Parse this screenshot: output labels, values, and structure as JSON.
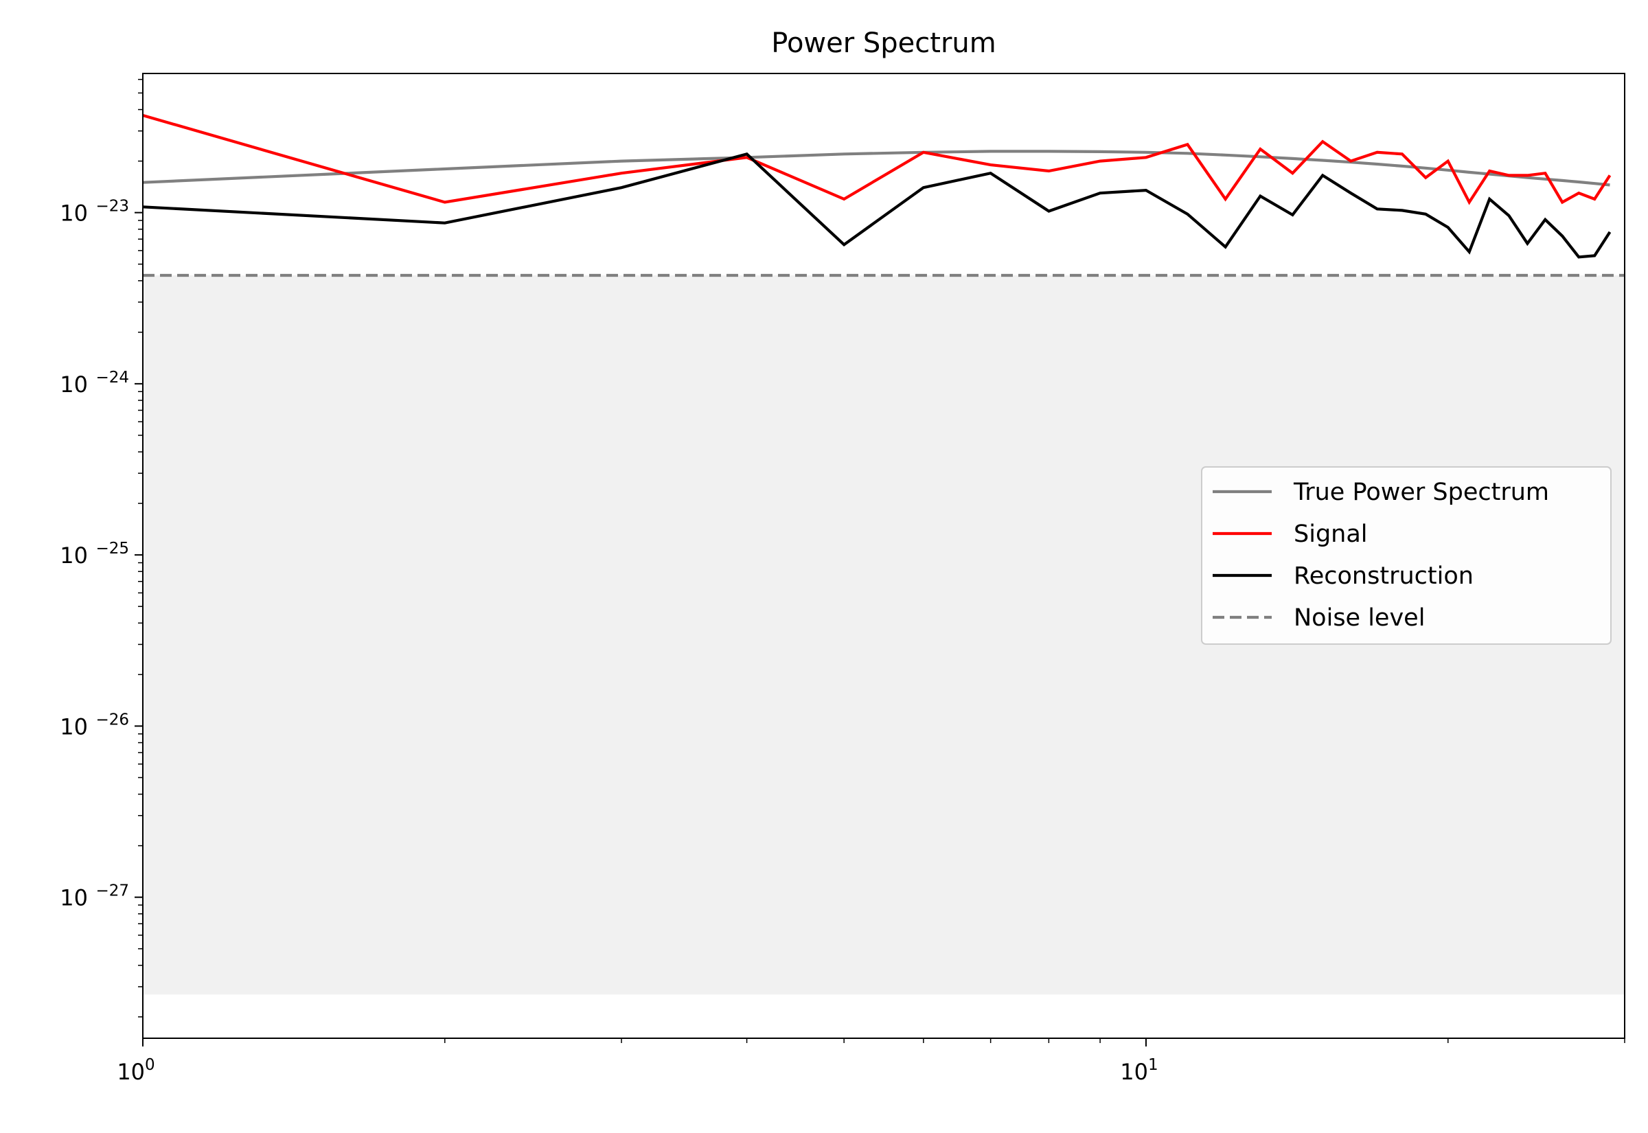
{
  "chart_data": {
    "type": "line",
    "title": "Power Spectrum",
    "xlabel": "",
    "ylabel": "",
    "xscale": "log",
    "yscale": "log",
    "xlim": [
      1,
      30
    ],
    "ylim": [
      1.5e-28,
      6.5e-23
    ],
    "x_ticks": [
      {
        "value": 1,
        "base": "10",
        "exp": "0"
      },
      {
        "value": 10,
        "base": "10",
        "exp": "1"
      }
    ],
    "y_ticks": [
      {
        "value": 1e-23,
        "base": "10",
        "exp": "−23"
      },
      {
        "value": 1e-24,
        "base": "10",
        "exp": "−24"
      },
      {
        "value": 1e-25,
        "base": "10",
        "exp": "−25"
      },
      {
        "value": 1e-26,
        "base": "10",
        "exp": "−26"
      },
      {
        "value": 1e-27,
        "base": "10",
        "exp": "−27"
      }
    ],
    "grid": false,
    "legend_position": "center-right",
    "shaded_band": {
      "x_range": [
        1,
        30
      ],
      "y_range": [
        2.7e-28,
        4.3e-24
      ],
      "color": "#f1f1f1"
    },
    "x": [
      1,
      2,
      3,
      4,
      5,
      6,
      7,
      8,
      9,
      10,
      11,
      12,
      13,
      14,
      15,
      16,
      17,
      18,
      19,
      20,
      21,
      22,
      23,
      24,
      25,
      26,
      27,
      28,
      29
    ],
    "series": [
      {
        "name": "True Power Spectrum",
        "color": "#808080",
        "dash": "solid",
        "x": [
          1,
          2,
          3,
          4,
          5,
          6,
          7,
          8,
          9,
          10,
          11,
          12,
          13,
          14,
          15,
          16,
          17,
          18,
          19,
          20,
          21,
          22,
          23,
          24,
          25,
          26,
          27,
          28,
          29
        ],
        "values": [
          1.5e-23,
          1.8e-23,
          2e-23,
          2.1e-23,
          2.2e-23,
          2.25e-23,
          2.28e-23,
          2.28e-23,
          2.27e-23,
          2.25e-23,
          2.22e-23,
          2.17e-23,
          2.12e-23,
          2.07e-23,
          2.02e-23,
          1.97e-23,
          1.92e-23,
          1.87e-23,
          1.82e-23,
          1.77e-23,
          1.72e-23,
          1.68e-23,
          1.64e-23,
          1.6e-23,
          1.57e-23,
          1.54e-23,
          1.51e-23,
          1.48e-23,
          1.45e-23
        ]
      },
      {
        "name": "Signal",
        "color": "#ff0000",
        "dash": "solid",
        "x": [
          1,
          2,
          3,
          4,
          5,
          6,
          7,
          8,
          9,
          10,
          11,
          12,
          13,
          14,
          15,
          16,
          17,
          18,
          19,
          20,
          21,
          22,
          23,
          24,
          25,
          26,
          27,
          28,
          29
        ],
        "values": [
          3.7e-23,
          1.15e-23,
          1.7e-23,
          2.1e-23,
          1.2e-23,
          2.25e-23,
          1.9e-23,
          1.75e-23,
          2e-23,
          2.1e-23,
          2.5e-23,
          1.2e-23,
          2.35e-23,
          1.7e-23,
          2.6e-23,
          2e-23,
          2.25e-23,
          2.2e-23,
          1.6e-23,
          2e-23,
          1.15e-23,
          1.75e-23,
          1.65e-23,
          1.65e-23,
          1.7e-23,
          1.15e-23,
          1.3e-23,
          1.2e-23,
          1.65e-23
        ]
      },
      {
        "name": "Reconstruction",
        "color": "#000000",
        "dash": "solid",
        "x": [
          1,
          2,
          3,
          4,
          5,
          6,
          7,
          8,
          9,
          10,
          11,
          12,
          13,
          14,
          15,
          16,
          17,
          18,
          19,
          20,
          21,
          22,
          23,
          24,
          25,
          26,
          27,
          28,
          29
        ],
        "values": [
          1.08e-23,
          8.7e-24,
          1.4e-23,
          2.2e-23,
          6.5e-24,
          1.4e-23,
          1.7e-23,
          1.02e-23,
          1.3e-23,
          1.35e-23,
          9.8e-24,
          6.3e-24,
          1.25e-23,
          9.7e-24,
          1.65e-23,
          1.3e-23,
          1.05e-23,
          1.03e-23,
          9.8e-24,
          8.2e-24,
          5.9e-24,
          1.2e-23,
          9.6e-24,
          6.6e-24,
          9.1e-24,
          7.3e-24,
          5.5e-24,
          5.6e-24,
          7.7e-24
        ]
      },
      {
        "name": "Noise level",
        "color": "#808080",
        "dash": "dashed",
        "x": [
          1,
          30
        ],
        "values": [
          4.3e-24,
          4.3e-24
        ]
      }
    ]
  }
}
